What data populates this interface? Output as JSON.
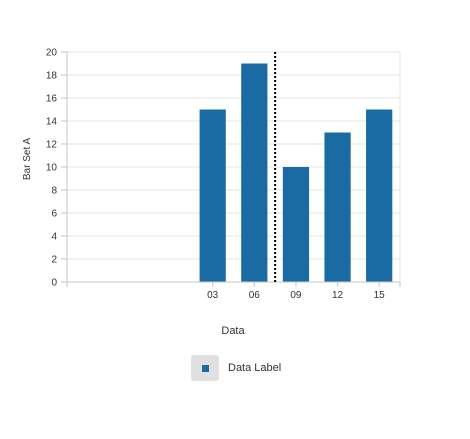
{
  "chart_data": {
    "type": "bar",
    "categories": [
      "03",
      "06",
      "09",
      "12",
      "15"
    ],
    "series": [
      {
        "name": "Data Label",
        "values": [
          15,
          19,
          10,
          13,
          15
        ]
      }
    ],
    "xlabel": "Data",
    "ylabel": "Bar Set A",
    "ylim": [
      0,
      20
    ],
    "yticks": [
      0,
      2,
      4,
      6,
      8,
      10,
      12,
      14,
      16,
      18,
      20
    ],
    "grid": true,
    "legend_position": "bottom",
    "colors": {
      "bar": "#1a6aa3",
      "grid": "#e6e6e6",
      "axis": "#c6c6c6",
      "reference_line": "#000000"
    }
  }
}
